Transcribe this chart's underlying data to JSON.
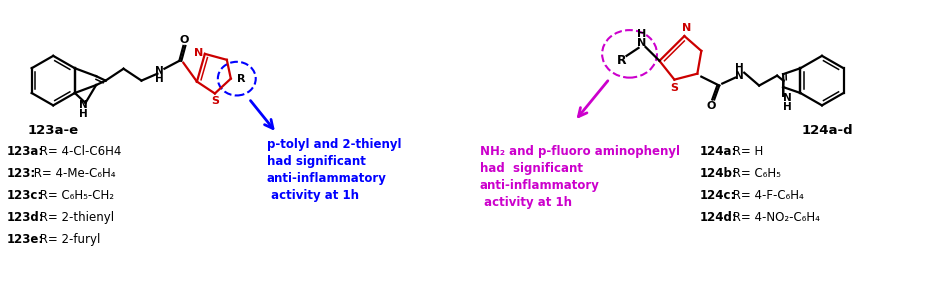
{
  "bg_color": "#ffffff",
  "fig_width": 9.45,
  "fig_height": 2.86,
  "dpi": 100,
  "blue_color": "#0000ff",
  "magenta_color": "#cc00cc",
  "black_color": "#000000",
  "red_color": "#cc0000",
  "label_123ae": "123a-e",
  "label_124ad": "124a-d",
  "blue_annotation": "p-tolyl and 2-thienyl\nhad significant\nanti-inflammatory\n activity at 1h",
  "magenta_annotation": "NH₂ and p-fluoro aminophenyl\nhad  significant\nanti-inflammatory\n activity at 1h",
  "compounds_123": [
    [
      "123a:",
      " R= 4-Cl-C6H4"
    ],
    [
      "123:",
      " R= 4-Me-C₆H₄"
    ],
    [
      "123c:",
      " R= C₆H₅-CH₂"
    ],
    [
      "123d:",
      " R= 2-thienyl"
    ],
    [
      "123e:",
      " R= 2-furyl"
    ]
  ],
  "compounds_124": [
    [
      "124a:",
      " R= H"
    ],
    [
      "124b:",
      " R= C₆H₅"
    ],
    [
      "124c:",
      " R= 4-F-C₆H₄"
    ],
    [
      "124d:",
      " R= 4-NO₂-C₆H₄"
    ]
  ]
}
